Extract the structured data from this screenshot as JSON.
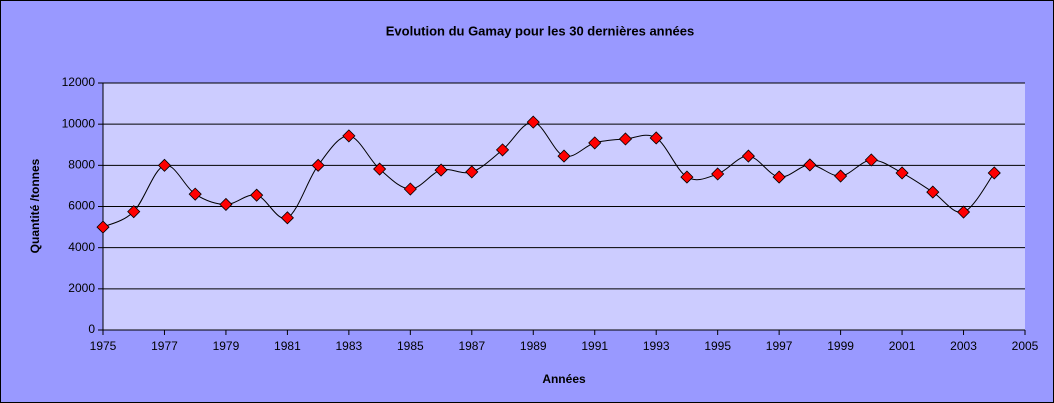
{
  "chart_data": {
    "type": "line",
    "title": "Evolution du Gamay pour les 30 dernières années",
    "x_label": "Années",
    "y_label": "Quantité /tonnes",
    "x": [
      1975,
      1976,
      1977,
      1978,
      1979,
      1980,
      1981,
      1982,
      1983,
      1984,
      1985,
      1986,
      1987,
      1988,
      1989,
      1990,
      1991,
      1992,
      1993,
      1994,
      1995,
      1996,
      1997,
      1998,
      1999,
      2000,
      2001,
      2002,
      2003,
      2004
    ],
    "series": [
      {
        "name": "Gamay",
        "color": "#ff0000",
        "values": [
          5000,
          5750,
          8000,
          6600,
          6100,
          6550,
          5450,
          8000,
          9430,
          7820,
          6850,
          7770,
          7680,
          8750,
          10100,
          8450,
          9090,
          9280,
          9330,
          7430,
          7580,
          8450,
          7430,
          8020,
          7480,
          8260,
          7630,
          6700,
          5730,
          7630
        ]
      }
    ],
    "xlim": [
      1975,
      2005
    ],
    "xticks": [
      1975,
      1977,
      1979,
      1981,
      1983,
      1985,
      1987,
      1989,
      1991,
      1993,
      1995,
      1997,
      1999,
      2001,
      2003,
      2005
    ],
    "ylim": [
      0,
      12000
    ],
    "yticks": [
      0,
      2000,
      4000,
      6000,
      8000,
      10000,
      12000
    ],
    "grid": true,
    "smooth": true,
    "marker": "diamond"
  }
}
